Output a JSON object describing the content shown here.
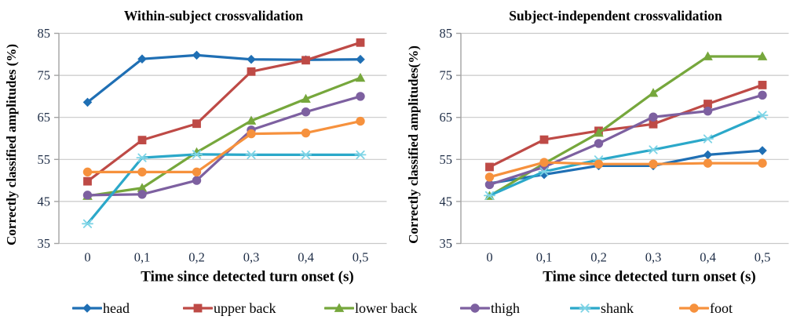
{
  "legend": {
    "items": [
      {
        "label": "head",
        "color": "#1F6FB4",
        "marker": "diamond"
      },
      {
        "label": "upper back",
        "color": "#BE4A46",
        "marker": "square"
      },
      {
        "label": "lower back",
        "color": "#76A73C",
        "marker": "triangle"
      },
      {
        "label": "thigh",
        "color": "#7D60A0",
        "marker": "circle"
      },
      {
        "label": "shank",
        "color": "#2BA8C9",
        "marker": "star",
        "marker_color": "#7ED4E6"
      },
      {
        "label": "foot",
        "color": "#F6913D",
        "marker": "circle"
      }
    ]
  },
  "chart_data": [
    {
      "type": "line",
      "title": "Within-subject crossvalidation",
      "xlabel": "Time since detected turn onset (s)",
      "ylabel": "Correctly classified amplitudes (%)",
      "x": [
        0,
        0.1,
        0.2,
        0.3,
        0.4,
        0.5
      ],
      "x_ticklabels": [
        "0",
        "0,1",
        "0,2",
        "0,3",
        "0,4",
        "0,5"
      ],
      "y_ticks": [
        35,
        45,
        55,
        65,
        75,
        85
      ],
      "ylim": [
        35,
        85
      ],
      "grid": true,
      "legend_position": "bottom",
      "series": [
        {
          "name": "head",
          "values": [
            68.6,
            78.9,
            79.8,
            78.8,
            78.7,
            78.8
          ]
        },
        {
          "name": "upper back",
          "values": [
            49.8,
            59.6,
            63.5,
            75.9,
            78.6,
            82.8
          ]
        },
        {
          "name": "lower back",
          "values": [
            46.3,
            48.2,
            56.7,
            64.2,
            69.4,
            74.4
          ]
        },
        {
          "name": "thigh",
          "values": [
            46.5,
            46.7,
            50.0,
            62.0,
            66.3,
            70.0
          ]
        },
        {
          "name": "shank",
          "values": [
            39.7,
            55.4,
            56.2,
            56.1,
            56.1,
            56.1
          ]
        },
        {
          "name": "foot",
          "values": [
            52.0,
            52.0,
            52.0,
            61.1,
            61.3,
            64.1
          ]
        }
      ]
    },
    {
      "type": "line",
      "title": "Subject-independent crossvalidation",
      "xlabel": "Time since detected turn onset (s)",
      "ylabel": "Correctly classified amplitudes(%)",
      "x": [
        0,
        0.1,
        0.2,
        0.3,
        0.4,
        0.5
      ],
      "x_ticklabels": [
        "0",
        "0,1",
        "0,2",
        "0,3",
        "0,4",
        "0,5"
      ],
      "y_ticks": [
        35,
        45,
        55,
        65,
        75,
        85
      ],
      "ylim": [
        35,
        85
      ],
      "grid": true,
      "legend_position": "bottom",
      "series": [
        {
          "name": "head",
          "values": [
            49.3,
            51.4,
            53.5,
            53.5,
            56.1,
            57.1
          ]
        },
        {
          "name": "upper back",
          "values": [
            53.2,
            59.7,
            61.8,
            63.4,
            68.2,
            72.7
          ]
        },
        {
          "name": "lower back",
          "values": [
            46.3,
            54.0,
            61.3,
            70.8,
            79.5,
            79.5
          ]
        },
        {
          "name": "thigh",
          "values": [
            49.0,
            53.2,
            58.8,
            65.1,
            66.5,
            70.3
          ]
        },
        {
          "name": "shank",
          "values": [
            46.4,
            52.1,
            54.9,
            57.3,
            59.9,
            65.5
          ]
        },
        {
          "name": "foot",
          "values": [
            50.8,
            54.3,
            53.9,
            53.9,
            54.1,
            54.1
          ]
        }
      ]
    }
  ],
  "style": {
    "grid_color": "#C9C9C9",
    "axis_color": "#A3A3A3",
    "tick_text_color": "#1E2D46",
    "text_color": "#000000"
  }
}
